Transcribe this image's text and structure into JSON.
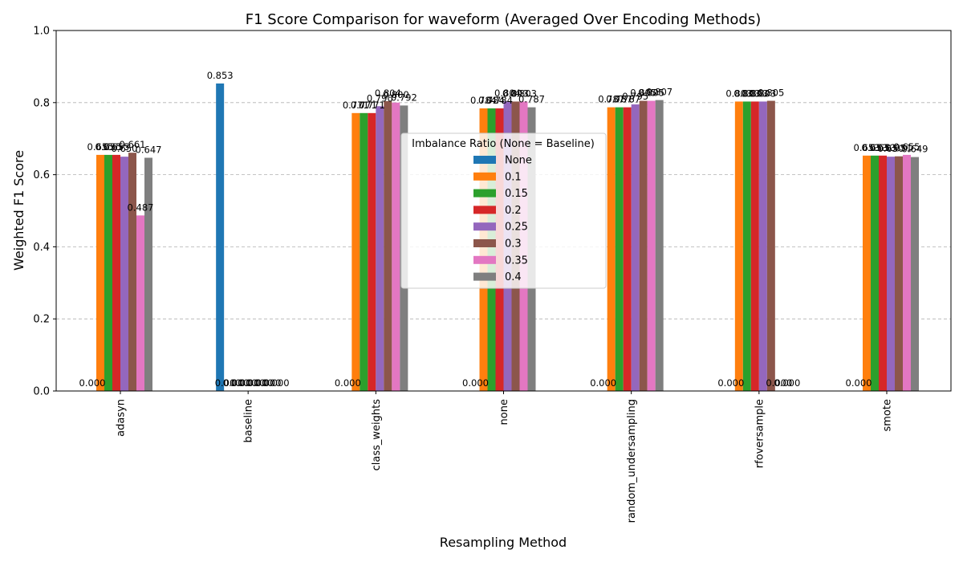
{
  "chart_data": {
    "type": "bar",
    "title": "F1 Score Comparison for waveform (Averaged Over Encoding Methods)",
    "xlabel": "Resampling Method",
    "ylabel": "Weighted F1 Score",
    "ylim": [
      0,
      1.0
    ],
    "yticks": [
      "0.0",
      "0.2",
      "0.4",
      "0.6",
      "0.8",
      "1.0"
    ],
    "grid": "y-dashed",
    "legend": {
      "title": "Imbalance Ratio (None = Baseline)",
      "placement": "center"
    },
    "categories": [
      "adasyn",
      "baseline",
      "class_weights",
      "none",
      "random_undersampling",
      "rfoversample",
      "smote"
    ],
    "series": [
      {
        "name": "None",
        "color": "#1f77b4",
        "values": [
          0.0,
          0.853,
          0.0,
          0.0,
          0.0,
          0.0,
          0.0
        ],
        "labels": [
          "0.000",
          "0.853",
          "0.000",
          "0.000",
          "0.000",
          "0.000",
          "0.000"
        ]
      },
      {
        "name": "0.1",
        "color": "#ff7f0e",
        "values": [
          0.655,
          0.0,
          0.771,
          0.784,
          0.787,
          0.803,
          0.653
        ],
        "labels": [
          "0.655",
          "0.000",
          "0.771",
          "0.784",
          "0.787",
          "0.803",
          "0.653"
        ]
      },
      {
        "name": "0.15",
        "color": "#2ca02c",
        "values": [
          0.655,
          0.0,
          0.771,
          0.784,
          0.787,
          0.803,
          0.653
        ],
        "labels": [
          "0.655",
          "0.000",
          "0.771",
          "0.784",
          "0.787",
          "0.803",
          "0.653"
        ]
      },
      {
        "name": "0.2",
        "color": "#d62728",
        "values": [
          0.655,
          0.0,
          0.771,
          0.784,
          0.787,
          0.803,
          0.653
        ],
        "labels": [
          "0.655",
          "0.000",
          "0.771",
          "0.784",
          "0.787",
          "0.803",
          "0.653"
        ]
      },
      {
        "name": "0.25",
        "color": "#9467bd",
        "values": [
          0.65,
          0.0,
          0.79,
          0.804,
          0.795,
          0.803,
          0.65
        ],
        "labels": [
          "0.650",
          "0.000",
          "0.790",
          "0.804",
          "0.795",
          "0.803",
          "0.650"
        ]
      },
      {
        "name": "0.3",
        "color": "#8c564b",
        "values": [
          0.661,
          0.0,
          0.804,
          0.803,
          0.805,
          0.805,
          0.651
        ],
        "labels": [
          "0.661",
          "0.000",
          "0.804",
          "0.803",
          "0.805",
          "0.805",
          "0.651"
        ]
      },
      {
        "name": "0.35",
        "color": "#e377c2",
        "values": [
          0.487,
          0.0,
          0.8,
          0.803,
          0.805,
          0.0,
          0.655
        ],
        "labels": [
          "0.487",
          "0.000",
          "0.800",
          "0.803",
          "0.805",
          "0.000",
          "0.655"
        ]
      },
      {
        "name": "0.4",
        "color": "#7f7f7f",
        "values": [
          0.647,
          0.0,
          0.792,
          0.787,
          0.807,
          0.0,
          0.649
        ],
        "labels": [
          "0.647",
          "0.000",
          "0.792",
          "0.787",
          "0.807",
          "0.000",
          "0.649"
        ]
      }
    ]
  }
}
